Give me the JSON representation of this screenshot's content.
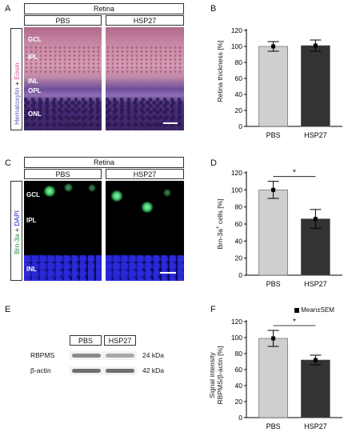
{
  "panels": {
    "A": {
      "letter": "A",
      "header": "Retina",
      "groups": [
        "PBS",
        "HSP27"
      ],
      "side_label_1": "Hematoxylin",
      "side_label_plus": "+",
      "side_label_2": "Eosin",
      "layers": [
        "GCL",
        "IPL",
        "INL",
        "OPL",
        "ONL"
      ]
    },
    "B": {
      "letter": "B"
    },
    "C": {
      "letter": "C",
      "header": "Retina",
      "groups": [
        "PBS",
        "HSP27"
      ],
      "side_label_1": "Brn-3a",
      "side_label_plus": "+",
      "side_label_2": "DAPI",
      "layers": [
        "GCL",
        "IPL",
        "INL"
      ]
    },
    "D": {
      "letter": "D"
    },
    "E": {
      "letter": "E",
      "groups": [
        "PBS",
        "HSP27"
      ],
      "rows": [
        {
          "label": "RBPMS",
          "size": "24 kDa"
        },
        {
          "label": "β-actin",
          "size": "42 kDa"
        }
      ]
    },
    "F": {
      "letter": "F",
      "legend": "Mean±SEM"
    }
  },
  "colors": {
    "pbs_bar": "#cfcfcf",
    "hsp27_bar": "#333333",
    "hematoxylin": "#5b5bbd",
    "eosin": "#e0409a",
    "brn3a": "#1a8a3a",
    "dapi": "#1a1ad0"
  },
  "chart_data": [
    {
      "panel": "B",
      "type": "bar",
      "categories": [
        "PBS",
        "HSP27"
      ],
      "values": [
        100,
        101
      ],
      "errors": [
        6,
        7
      ],
      "ylabel": "Retina thickness [%]",
      "ylim": [
        0,
        120
      ],
      "yticks": [
        0,
        20,
        40,
        60,
        80,
        100,
        120
      ],
      "significance": null
    },
    {
      "panel": "D",
      "type": "bar",
      "categories": [
        "PBS",
        "HSP27"
      ],
      "values": [
        100,
        66
      ],
      "errors": [
        10,
        11
      ],
      "ylabel_main": "Brn-3a",
      "ylabel_sup": "+",
      "ylabel_rest": " cells [%]",
      "ylim": [
        0,
        120
      ],
      "yticks": [
        0,
        20,
        40,
        60,
        80,
        100,
        120
      ],
      "significance": "*"
    },
    {
      "panel": "F",
      "type": "bar",
      "categories": [
        "PBS",
        "HSP27"
      ],
      "values": [
        99,
        72
      ],
      "errors": [
        10,
        6
      ],
      "ylabel_line1": "Signal intensity",
      "ylabel_line2": "RBPMS/β-actin [%]",
      "ylim": [
        0,
        120
      ],
      "yticks": [
        0,
        20,
        40,
        60,
        80,
        100,
        120
      ],
      "significance": "*"
    }
  ]
}
